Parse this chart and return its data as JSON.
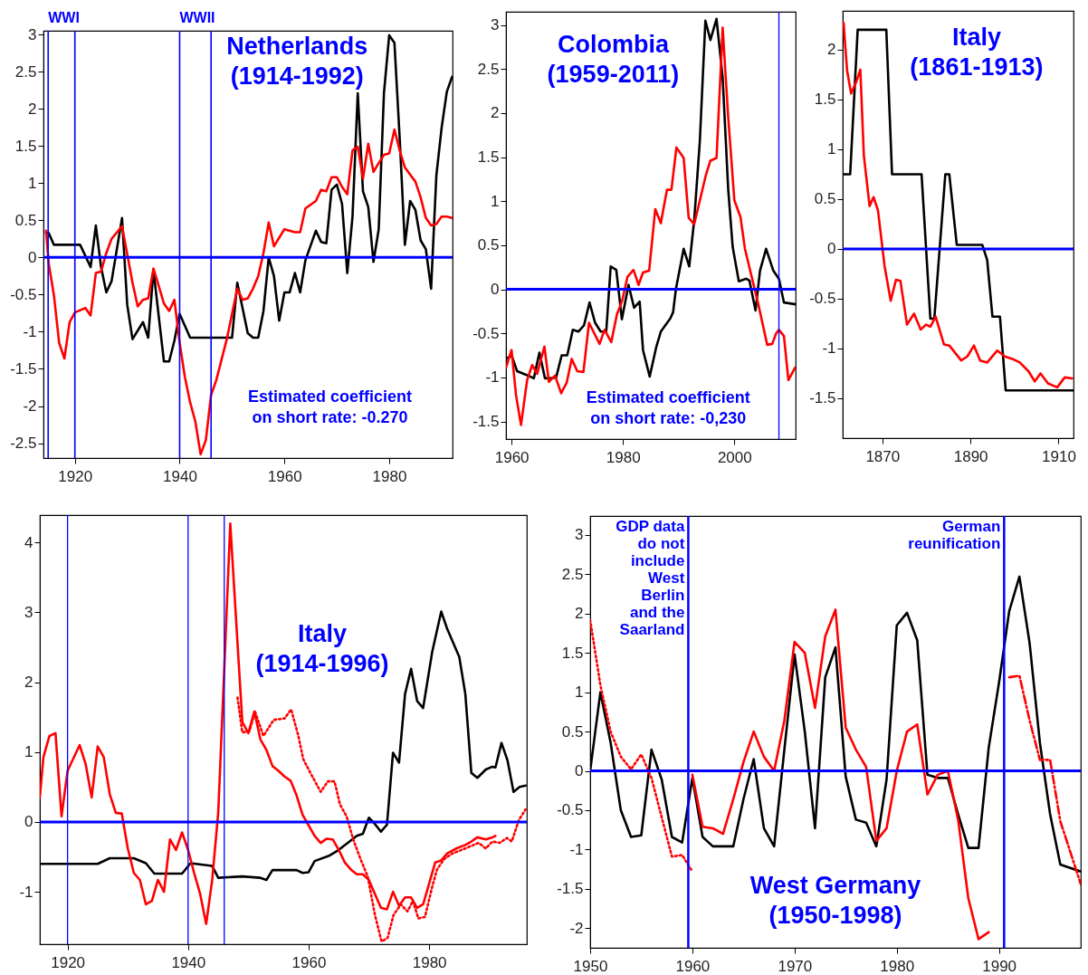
{
  "chart_data": [
    {
      "type": "line",
      "title": "Netherlands\n(1914-1992)",
      "xlim": [
        1914,
        1992.1
      ],
      "xticks": [
        1920,
        1940,
        1960,
        1980
      ],
      "ylim": [
        -2.7,
        3.05
      ],
      "yticks": [
        -2.5,
        -2,
        -1.5,
        -1,
        -0.5,
        0,
        0.5,
        1,
        1.5,
        2,
        2.5,
        3
      ],
      "series": [
        {
          "color": "#000000",
          "x": [
            1914.5,
            1915,
            1916,
            1921,
            1923,
            1924,
            1925,
            1926,
            1927,
            1929,
            1930,
            1931,
            1933,
            1934,
            1935,
            1937,
            1938,
            1939,
            1940,
            1942,
            1950,
            1951,
            1953,
            1954,
            1955,
            1956,
            1957,
            1958,
            1959,
            1960,
            1961,
            1962,
            1963,
            1964,
            1966,
            1967,
            1968,
            1969,
            1970,
            1971,
            1972,
            1973,
            1974,
            1975,
            1976,
            1977,
            1978,
            1979,
            1980,
            1981,
            1982,
            1983,
            1984,
            1985,
            1986,
            1987,
            1988,
            1989,
            1990,
            1991,
            1992
          ],
          "values": [
            0.33,
            0.33,
            0.17,
            0.17,
            -0.13,
            0.43,
            -0.13,
            -0.47,
            -0.32,
            0.53,
            -0.64,
            -1.1,
            -0.87,
            -1.08,
            -0.17,
            -1.4,
            -1.4,
            -1.12,
            -0.76,
            -1.08,
            -1.08,
            -0.34,
            -1.02,
            -1.08,
            -1.08,
            -0.72,
            0,
            -0.25,
            -0.85,
            -0.47,
            -0.47,
            -0.21,
            -0.47,
            -0.04,
            0.36,
            0.21,
            0.19,
            0.91,
            0.98,
            0.72,
            -0.21,
            0.55,
            2.21,
            0.89,
            0.68,
            -0.06,
            0.38,
            2.21,
            2.99,
            2.89,
            1.61,
            0.17,
            0.76,
            0.64,
            0.23,
            0.11,
            -0.42,
            1.1,
            1.74,
            2.23,
            2.43
          ]
        },
        {
          "color": "#ff0000",
          "x": [
            1914.5,
            1915,
            1916,
            1917,
            1918,
            1919,
            1920,
            1922,
            1923,
            1924,
            1925,
            1926,
            1927,
            1929,
            1930,
            1931,
            1932,
            1933,
            1934,
            1935,
            1936,
            1937,
            1938,
            1939,
            1940,
            1941,
            1942,
            1943,
            1944,
            1945,
            1946,
            1947,
            1949,
            1951,
            1952,
            1953,
            1954,
            1955,
            1956,
            1957,
            1958,
            1960,
            1962,
            1963,
            1964,
            1966,
            1967,
            1968,
            1969,
            1970,
            1971,
            1972,
            1973,
            1974,
            1975,
            1976,
            1977,
            1978,
            1979,
            1980,
            1981,
            1982,
            1983,
            1985,
            1986,
            1987,
            1988,
            1989,
            1990,
            1991,
            1992
          ],
          "values": [
            0.36,
            -0.08,
            -0.51,
            -1.15,
            -1.36,
            -0.87,
            -0.74,
            -0.68,
            -0.78,
            -0.21,
            -0.19,
            0.06,
            0.25,
            0.42,
            0.04,
            -0.34,
            -0.66,
            -0.57,
            -0.55,
            -0.15,
            -0.38,
            -0.62,
            -0.72,
            -0.57,
            -1.15,
            -1.61,
            -1.95,
            -2.21,
            -2.65,
            -2.46,
            -1.85,
            -1.65,
            -1.1,
            -0.42,
            -0.57,
            -0.55,
            -0.42,
            -0.25,
            0.06,
            0.47,
            0.15,
            0.38,
            0.34,
            0.34,
            0.66,
            0.76,
            0.91,
            0.89,
            1.08,
            1.08,
            0.95,
            0.85,
            1.44,
            1.49,
            1.06,
            1.53,
            1.15,
            1.27,
            1.38,
            1.4,
            1.72,
            1.44,
            1.21,
            1.02,
            0.81,
            0.53,
            0.43,
            0.45,
            0.55,
            0.55,
            0.53
          ]
        }
      ],
      "ref_lines": [
        {
          "axis": "y",
          "value": 0,
          "color": "#0000ff"
        },
        {
          "axis": "x",
          "value": 1914.9,
          "label": "WWI",
          "color": "#0000ff"
        },
        {
          "axis": "x",
          "value": 1920,
          "color": "#0000ff"
        },
        {
          "axis": "x",
          "value": 1940,
          "label": "WWII",
          "color": "#0000ff"
        },
        {
          "axis": "x",
          "value": 1946,
          "color": "#0000ff"
        }
      ],
      "annotations": [
        "Estimated coefficient\non short rate: -0.270"
      ]
    },
    {
      "type": "line",
      "title": "Colombia\n(1959-2011)",
      "xlim": [
        1959,
        2011
      ],
      "xticks": [
        1960,
        1980,
        2000
      ],
      "ylim": [
        -1.7,
        3.15
      ],
      "yticks": [
        -1.5,
        -1,
        -0.5,
        0,
        0.5,
        1,
        1.5,
        2,
        2.5,
        3
      ],
      "series": [
        {
          "color": "#000000",
          "x": [
            1959,
            1960,
            1961,
            1963,
            1964,
            1965,
            1966,
            1967,
            1968,
            1969,
            1970,
            1971,
            1972,
            1973,
            1974,
            1975,
            1976,
            1977,
            1977.8,
            1978.8,
            1979.8,
            1981,
            1982,
            1983,
            1983.6,
            1984.8,
            1986,
            1986.8,
            1988.5,
            1989,
            1989.5,
            1990.9,
            1991.9,
            1992.8,
            1993.8,
            1994.8,
            1995.7,
            1996.8,
            1997.9,
            1998.9,
            1999.7,
            2000.8,
            2002.1,
            2002.7,
            2003.8,
            2004.6,
            2005.7,
            2007,
            2008,
            2008.9,
            2011
          ],
          "values": [
            -0.79,
            -0.75,
            -0.93,
            -0.98,
            -1.01,
            -0.72,
            -1.01,
            -1.01,
            -1.0,
            -0.75,
            -0.75,
            -0.46,
            -0.48,
            -0.41,
            -0.15,
            -0.38,
            -0.48,
            -0.48,
            0.26,
            0.22,
            -0.34,
            0.05,
            -0.21,
            -0.14,
            -0.69,
            -0.99,
            -0.65,
            -0.48,
            -0.33,
            -0.26,
            0,
            0.46,
            0.26,
            0.79,
            1.68,
            3.05,
            2.83,
            3.07,
            2.4,
            1.13,
            0.48,
            0.09,
            0.12,
            0.1,
            -0.24,
            0.21,
            0.46,
            0.21,
            0.12,
            -0.15,
            -0.17
          ]
        },
        {
          "color": "#ff0000",
          "x": [
            1959,
            1960,
            1960.8,
            1961.7,
            1962.8,
            1963.7,
            1964.6,
            1965.9,
            1966.7,
            1967.8,
            1968.9,
            1969.9,
            1970.8,
            1971.8,
            1972.9,
            1973.9,
            1975.8,
            1976.7,
            1977.9,
            1978.9,
            1979.9,
            1980.8,
            1981.9,
            1982.8,
            1983.6,
            1984.7,
            1985.8,
            1986.8,
            1987.9,
            1988.7,
            1989.6,
            1990.9,
            1991.8,
            1992.8,
            1994.9,
            1995.7,
            1996.8,
            1997.9,
            1998.9,
            2000,
            2001.1,
            2001.9,
            2003,
            2004.3,
            2005.9,
            2006.8,
            2007.5,
            2008,
            2008.9,
            2009.7,
            2010.9
          ],
          "values": [
            -0.89,
            -0.69,
            -1.2,
            -1.54,
            -1.03,
            -0.86,
            -0.96,
            -0.65,
            -1.05,
            -0.98,
            -1.18,
            -1.06,
            -0.79,
            -0.93,
            -0.94,
            -0.38,
            -0.62,
            -0.46,
            -0.6,
            -0.29,
            -0.12,
            0.14,
            0.22,
            0.05,
            0.19,
            0.21,
            0.91,
            0.75,
            1.13,
            1.13,
            1.61,
            1.49,
            0.81,
            0.74,
            1.3,
            1.46,
            1.49,
            2.97,
            1.95,
            1.01,
            0.82,
            0.46,
            0.17,
            -0.17,
            -0.63,
            -0.62,
            -0.5,
            -0.46,
            -0.53,
            -1.03,
            -0.89
          ]
        }
      ],
      "ref_lines": [
        {
          "axis": "y",
          "value": 0,
          "color": "#0000ff"
        },
        {
          "axis": "x",
          "value": 2008,
          "color": "#0000ff"
        }
      ],
      "annotations": [
        "Estimated coefficient\non short rate: -0,230"
      ]
    },
    {
      "type": "line",
      "title": "Italy\n(1861-1913)",
      "xlim": [
        1861,
        1913.4
      ],
      "xticks": [
        1870,
        1890,
        1910
      ],
      "ylim": [
        -1.9,
        2.39
      ],
      "yticks": [
        -1.5,
        -1,
        -0.5,
        0,
        0.5,
        1,
        1.5,
        2
      ],
      "series": [
        {
          "color": "#000000",
          "x": [
            1861.2,
            1862.7,
            1864.4,
            1870.9,
            1872.2,
            1878.9,
            1880.9,
            1881.8,
            1884.3,
            1885.2,
            1886.9,
            1892.7,
            1893.8,
            1895,
            1896.7,
            1898,
            1913.4
          ],
          "values": [
            0.75,
            0.75,
            2.2,
            2.2,
            0.75,
            0.75,
            -0.7,
            -0.7,
            0.75,
            0.75,
            0.04,
            0.04,
            -0.11,
            -0.68,
            -0.68,
            -1.42,
            -1.42
          ]
        },
        {
          "color": "#ff0000",
          "x": [
            1861.2,
            1862,
            1862.9,
            1864.1,
            1865,
            1865.8,
            1867.1,
            1868,
            1869,
            1870.5,
            1871.9,
            1873.1,
            1874.1,
            1875.6,
            1877.2,
            1878.7,
            1879.9,
            1880.9,
            1882.1,
            1884,
            1885.2,
            1887.9,
            1889.3,
            1890.8,
            1892.2,
            1893.8,
            1896.1,
            1897.8,
            1899.8,
            1901.2,
            1903.2,
            1904.6,
            1905.9,
            1907.6,
            1909.7,
            1911.4,
            1913.1
          ],
          "values": [
            2.27,
            1.79,
            1.56,
            1.68,
            1.8,
            0.94,
            0.43,
            0.52,
            0.39,
            -0.17,
            -0.52,
            -0.31,
            -0.32,
            -0.76,
            -0.65,
            -0.81,
            -0.76,
            -0.78,
            -0.68,
            -0.96,
            -0.97,
            -1.12,
            -1.08,
            -0.97,
            -1.12,
            -1.14,
            -1.02,
            -1.08,
            -1.11,
            -1.14,
            -1.23,
            -1.33,
            -1.25,
            -1.35,
            -1.39,
            -1.29,
            -1.3
          ]
        }
      ],
      "ref_lines": [
        {
          "axis": "y",
          "value": 0,
          "color": "#0000ff"
        }
      ]
    },
    {
      "type": "line",
      "title": "Italy\n(1914-1996)",
      "xlim": [
        1915.4,
        1996.2
      ],
      "xticks": [
        1920,
        1940,
        1960,
        1980
      ],
      "ylim": [
        -1.75,
        4.39
      ],
      "yticks": [
        -1,
        0,
        1,
        2,
        3,
        4
      ],
      "series": [
        {
          "color": "#000000",
          "x": [
            1915.4,
            1925,
            1927,
            1931,
            1933,
            1934.4,
            1939,
            1940.4,
            1944,
            1945,
            1949,
            1952,
            1953,
            1954,
            1958,
            1959,
            1960,
            1961,
            1963.5,
            1965,
            1968,
            1969,
            1970,
            1971,
            1972,
            1973,
            1974,
            1975,
            1976,
            1977,
            1978,
            1979,
            1980.5,
            1982,
            1983,
            1985,
            1986,
            1987,
            1988,
            1989.4,
            1990.5,
            1991,
            1992,
            1993,
            1994,
            1995,
            1996
          ],
          "values": [
            -0.6,
            -0.6,
            -0.52,
            -0.52,
            -0.59,
            -0.74,
            -0.74,
            -0.59,
            -0.63,
            -0.8,
            -0.78,
            -0.8,
            -0.83,
            -0.69,
            -0.69,
            -0.73,
            -0.72,
            -0.56,
            -0.48,
            -0.4,
            -0.2,
            -0.17,
            0.06,
            -0.03,
            -0.14,
            -0.04,
            0.99,
            0.85,
            1.83,
            2.19,
            1.73,
            1.63,
            2.43,
            3.01,
            2.76,
            2.36,
            1.83,
            0.7,
            0.63,
            0.75,
            0.79,
            0.78,
            1.13,
            0.88,
            0.43,
            0.5,
            0.52
          ]
        },
        {
          "color": "#ff0000",
          "x": [
            1915.4,
            1916,
            1917,
            1918,
            1919,
            1920,
            1922,
            1923,
            1924,
            1925,
            1926,
            1927,
            1928,
            1929,
            1930,
            1931,
            1932,
            1933,
            1934,
            1935,
            1936,
            1937,
            1938,
            1939,
            1940,
            1941,
            1942,
            1943,
            1944,
            1945,
            1946,
            1947,
            1948,
            1949,
            1950,
            1951,
            1952,
            1953,
            1954,
            1955,
            1956,
            1957,
            1958,
            1959,
            1960,
            1961,
            1962,
            1963,
            1964,
            1965,
            1966,
            1967,
            1968,
            1969,
            1970,
            1971,
            1972,
            1973,
            1974,
            1975,
            1976,
            1977,
            1978,
            1979,
            1980,
            1981,
            1982,
            1983,
            1984.5,
            1986,
            1987,
            1988,
            1989.4,
            1990.5,
            1991
          ],
          "values": [
            0.35,
            0.93,
            1.23,
            1.27,
            0.08,
            0.73,
            1.1,
            0.83,
            0.35,
            1.08,
            0.93,
            0.4,
            0.13,
            0.12,
            -0.38,
            -0.73,
            -0.83,
            -1.18,
            -1.13,
            -0.83,
            -1.0,
            -0.25,
            -0.4,
            -0.15,
            -0.4,
            -0.73,
            -1.03,
            -1.46,
            -0.83,
            0.13,
            2.18,
            4.27,
            2.84,
            1.43,
            1.27,
            1.58,
            1.18,
            1.03,
            0.8,
            0.73,
            0.65,
            0.59,
            0.38,
            0.1,
            -0.05,
            -0.2,
            -0.3,
            -0.24,
            -0.25,
            -0.4,
            -0.58,
            -0.68,
            -0.75,
            -0.75,
            -0.83,
            -1.03,
            -1.23,
            -1.25,
            -1.0,
            -1.2,
            -1.08,
            -1.08,
            -1.23,
            -1.18,
            -0.88,
            -0.58,
            -0.55,
            -0.45,
            -0.38,
            -0.33,
            -0.28,
            -0.22,
            -0.25,
            -0.22,
            -0.2
          ]
        },
        {
          "color": "#ff0000",
          "line_style": "dotted",
          "x": [
            1948.2,
            1949,
            1950.2,
            1951.1,
            1952.5,
            1954.2,
            1956,
            1957.1,
            1958.3,
            1959.1,
            1960.3,
            1962,
            1963.2,
            1964.3,
            1965.2,
            1966.3,
            1967.4,
            1968.6,
            1969.8,
            1971,
            1972.1,
            1973.1,
            1974.1,
            1975.3,
            1976.4,
            1977.3,
            1978.2,
            1979.3,
            1980.5,
            1981.3,
            1982.5,
            1983.9,
            1985.4,
            1986.8,
            1988.2,
            1989.4,
            1990.5,
            1991.7,
            1992.9,
            1993.7,
            1994.9,
            1996
          ],
          "values": [
            1.78,
            1.28,
            1.3,
            1.58,
            1.23,
            1.46,
            1.48,
            1.61,
            1.23,
            0.9,
            0.7,
            0.43,
            0.58,
            0.58,
            0.25,
            0.08,
            -0.25,
            -0.53,
            -0.78,
            -1.33,
            -1.71,
            -1.66,
            -1.33,
            -1.18,
            -1.28,
            -1.13,
            -1.38,
            -1.36,
            -0.93,
            -0.68,
            -0.53,
            -0.45,
            -0.4,
            -0.35,
            -0.3,
            -0.38,
            -0.28,
            -0.3,
            -0.23,
            -0.28,
            0.03,
            0.18
          ]
        }
      ],
      "ref_lines": [
        {
          "axis": "y",
          "value": 0,
          "color": "#0000ff"
        },
        {
          "axis": "x",
          "value": 1920,
          "color": "#0000ff"
        },
        {
          "axis": "x",
          "value": 1940,
          "color": "#0000ff"
        },
        {
          "axis": "x",
          "value": 1946,
          "color": "#0000ff"
        }
      ]
    },
    {
      "type": "line",
      "title": "West Germany\n(1950-1998)",
      "xlim": [
        1950,
        1998
      ],
      "xticks": [
        1950,
        1960,
        1970,
        1980,
        1990
      ],
      "ylim": [
        -2.25,
        3.24
      ],
      "yticks": [
        -2,
        -1.5,
        -1,
        -0.5,
        0,
        0.5,
        1,
        1.5,
        2,
        2.5,
        3
      ],
      "series": [
        {
          "color": "#000000",
          "x": [
            1950,
            1951,
            1952,
            1953,
            1954,
            1955,
            1956,
            1957,
            1958,
            1959,
            1960,
            1961,
            1962,
            1964,
            1965,
            1966,
            1967,
            1968,
            1969,
            1970,
            1971,
            1972,
            1973,
            1974,
            1975,
            1976,
            1977,
            1978,
            1979,
            1980,
            1981,
            1982,
            1983,
            1984,
            1985,
            1986,
            1987,
            1988,
            1989,
            1990,
            1991,
            1992,
            1993,
            1994,
            1995,
            1996,
            1998
          ],
          "values": [
            0,
            1.0,
            0.36,
            -0.5,
            -0.84,
            -0.82,
            0.27,
            -0.11,
            -0.84,
            -0.91,
            -0.09,
            -0.84,
            -0.96,
            -0.96,
            -0.36,
            0.15,
            -0.73,
            -0.96,
            0.27,
            1.48,
            0.5,
            -0.73,
            1.19,
            1.57,
            -0.07,
            -0.62,
            -0.66,
            -0.96,
            -0.11,
            1.85,
            2.01,
            1.66,
            -0.05,
            -0.09,
            -0.09,
            -0.55,
            -0.98,
            -0.98,
            0.3,
            1.12,
            2.03,
            2.47,
            1.62,
            0.36,
            -0.55,
            -1.19,
            -1.28
          ]
        },
        {
          "color": "#ff0000",
          "x": [
            1960,
            1961,
            1962,
            1963,
            1964,
            1965,
            1966,
            1967,
            1968,
            1969,
            1970,
            1971,
            1972,
            1973,
            1974,
            1975,
            1976,
            1977,
            1978,
            1979,
            1980,
            1981,
            1982,
            1983,
            1984,
            1985,
            1986,
            1987,
            1988,
            1989
          ],
          "values": [
            -0.05,
            -0.71,
            -0.73,
            -0.8,
            -0.36,
            0.11,
            0.5,
            0.18,
            0,
            0.64,
            1.64,
            1.5,
            0.8,
            1.71,
            2.05,
            0.55,
            0.27,
            0.05,
            -0.89,
            -0.73,
            0,
            0.5,
            0.59,
            -0.3,
            -0.05,
            0,
            -0.62,
            -1.62,
            -2.14,
            -2.05
          ]
        },
        {
          "color": "#ff0000",
          "line_style": "dotted",
          "x": [
            1950,
            1951,
            1952,
            1953,
            1954,
            1955,
            1956,
            1957,
            1958,
            1959,
            1960
          ],
          "values": [
            1.92,
            1.09,
            0.5,
            0.18,
            0.02,
            0.21,
            -0.09,
            -0.59,
            -1.09,
            -1.07,
            -1.28
          ]
        },
        {
          "color": "#ff0000",
          "line_style": "dashed",
          "x": [
            1991,
            1992,
            1993,
            1994,
            1995,
            1996,
            1998
          ],
          "values": [
            1.19,
            1.21,
            0.64,
            0.14,
            0.14,
            -0.64,
            -1.44
          ]
        }
      ],
      "ref_lines": [
        {
          "axis": "y",
          "value": 0,
          "color": "#0000ff"
        },
        {
          "axis": "x",
          "value": 1959.6,
          "label": "GDP data\ndo not\ninclude\nWest\nBerlin\nand the\nSaarland",
          "color": "#0000ff"
        },
        {
          "axis": "x",
          "value": 1990.5,
          "label": "German\nreunification",
          "color": "#0000ff"
        }
      ]
    }
  ]
}
